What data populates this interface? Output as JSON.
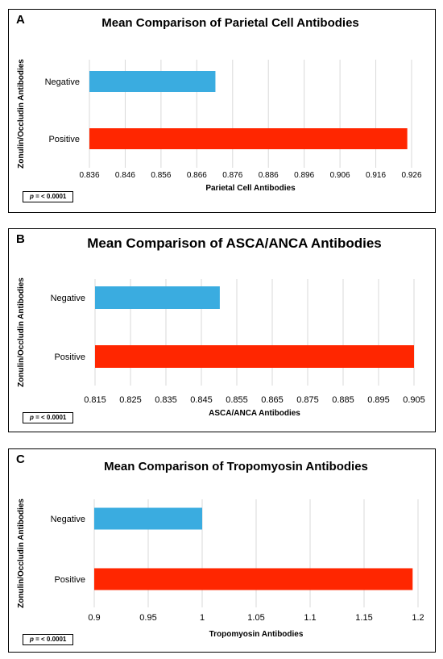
{
  "panels": [
    {
      "letter": "A",
      "p_italic": "p",
      "p_rest": " = < 0.0001"
    },
    {
      "letter": "B",
      "p_italic": "p",
      "p_rest": " = < 0.0001"
    },
    {
      "letter": "C",
      "p_italic": "p",
      "p_rest": " = < 0.0001"
    }
  ],
  "colors": {
    "negative": "#3aace0",
    "positive": "#ff2600",
    "grid": "#d9d9d9"
  },
  "chart_data": [
    {
      "type": "bar",
      "orientation": "horizontal",
      "title": "Mean Comparison of Parietal Cell Antibodies",
      "xlabel": "Parietal Cell Antibodies",
      "ylabel": "Zonulin/Occludin Antibodies",
      "categories": [
        "Negative",
        "Positive"
      ],
      "values": [
        0.8712,
        0.9248
      ],
      "xlim": [
        0.836,
        0.926
      ],
      "xticks": [
        "0.836",
        "0.846",
        "0.856",
        "0.866",
        "0.876",
        "0.886",
        "0.896",
        "0.906",
        "0.916",
        "0.926"
      ],
      "grid": true
    },
    {
      "type": "bar",
      "orientation": "horizontal",
      "title": "Mean Comparison of ASCA/ANCA Antibodies",
      "xlabel": "ASCA/ANCA Antibodies",
      "ylabel": "Zonulin/Occludin Antibodies",
      "categories": [
        "Negative",
        "Positive"
      ],
      "values": [
        0.8502,
        0.9052
      ],
      "xlim": [
        0.815,
        0.905
      ],
      "xticks": [
        "0.815",
        "0.825",
        "0.835",
        "0.845",
        "0.855",
        "0.865",
        "0.875",
        "0.885",
        "0.895",
        "0.905"
      ],
      "grid": true
    },
    {
      "type": "bar",
      "orientation": "horizontal",
      "title": "Mean Comparison of Tropomyosin Antibodies",
      "xlabel": "Tropomyosin Antibodies",
      "ylabel": "Zonulin/Occludin Antibodies",
      "categories": [
        "Negative",
        "Positive"
      ],
      "values": [
        1.0,
        1.195
      ],
      "xlim": [
        0.9,
        1.2
      ],
      "xticks": [
        "0.9",
        "0.95",
        "1",
        "1.05",
        "1.1",
        "1.15",
        "1.2"
      ],
      "grid": true
    }
  ]
}
